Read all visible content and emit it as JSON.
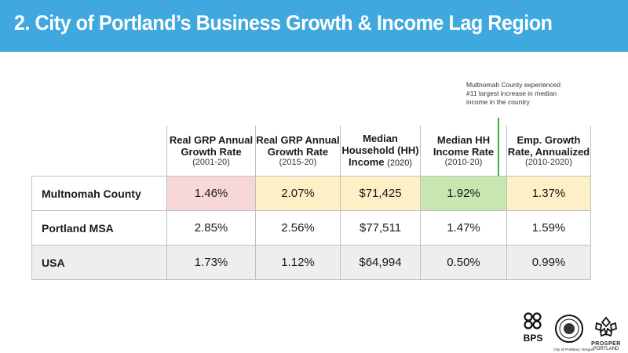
{
  "slide": {
    "title": "2. City of Portland’s Business Growth & Income Lag Region"
  },
  "annotation": {
    "text": "Multnomah County experienced #11 largest increase in median income in the country",
    "line_color": "#3cb043"
  },
  "table": {
    "headers": [
      {
        "main": "Real GRP Annual Growth Rate",
        "sub": "(2001-20)"
      },
      {
        "main": "Real GRP Annual Growth Rate",
        "sub": "(2015-20)"
      },
      {
        "main": "Median Household (HH) Income",
        "sub": "(2020)"
      },
      {
        "main": "Median HH Income Rate",
        "sub": "(2010-20)"
      },
      {
        "main": "Emp. Growth Rate, Annualized",
        "sub": "(2010-2020)"
      }
    ],
    "rows": [
      {
        "label": "Multnomah County",
        "cells": [
          "1.46%",
          "2.07%",
          "$71,425",
          "1.92%",
          "1.37%"
        ]
      },
      {
        "label": "Portland MSA",
        "cells": [
          "2.85%",
          "2.56%",
          "$77,511",
          "1.47%",
          "1.59%"
        ]
      },
      {
        "label": "USA",
        "cells": [
          "1.73%",
          "1.12%",
          "$64,994",
          "0.50%",
          "0.99%"
        ]
      }
    ]
  },
  "colors": {
    "title_bar": "#3fa8df",
    "highlight_red": "#f8d7d7",
    "highlight_yellow": "#fdefc6",
    "highlight_green": "#c7e6b0",
    "row_gray": "#eeeeee"
  },
  "logos": {
    "bps": "BPS",
    "city_seal_caption": "City of Portland, Oregon",
    "prosper_line1": "PROSPER",
    "prosper_line2": "PORTLAND"
  }
}
